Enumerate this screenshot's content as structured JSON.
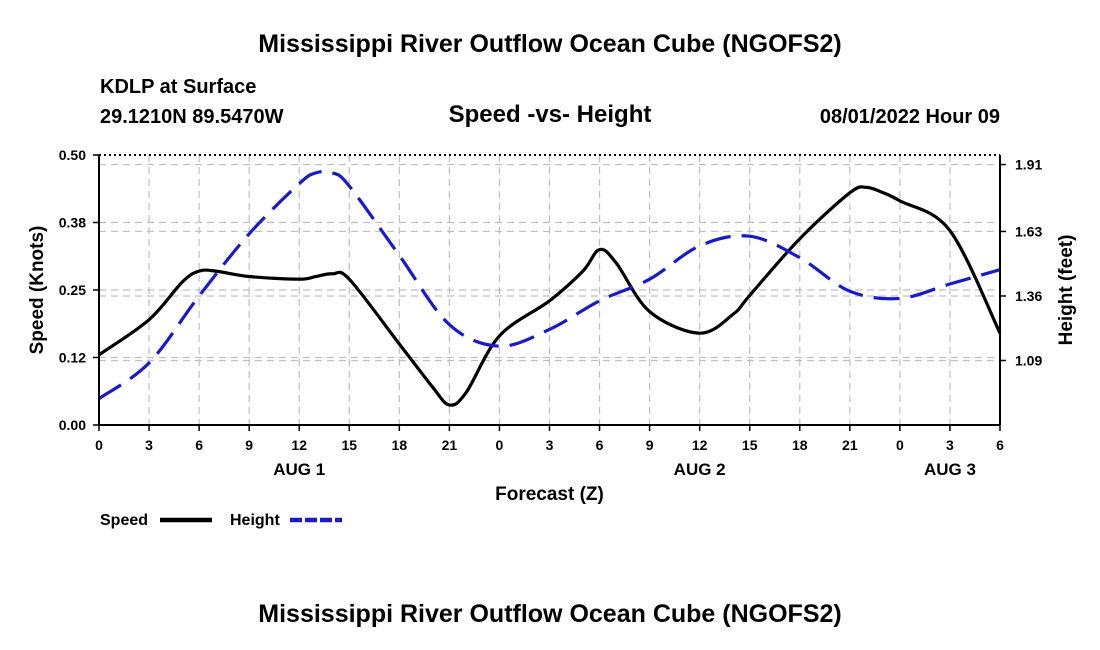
{
  "header": {
    "title": "Mississippi River Outflow Ocean Cube (NGOFS2)",
    "station": "KDLP at Surface",
    "location": "29.1210N  89.5470W",
    "subtitle": "Speed -vs- Height",
    "datetime": "08/01/2022 Hour 09"
  },
  "footer": {
    "title": "Mississippi River Outflow Ocean Cube (NGOFS2)"
  },
  "chart_data": {
    "type": "line",
    "title": "Speed -vs- Height",
    "xlabel": "Forecast (Z)",
    "ylabel": "Speed (Knots)",
    "y2label": "Height (feet)",
    "grid": true,
    "x_range": [
      0,
      54
    ],
    "x_ticks": [
      0,
      3,
      6,
      9,
      12,
      15,
      18,
      21,
      24,
      27,
      30,
      33,
      36,
      39,
      42,
      45,
      48,
      51,
      54
    ],
    "x_tick_labels": [
      "0",
      "3",
      "6",
      "9",
      "12",
      "15",
      "18",
      "21",
      "0",
      "3",
      "6",
      "9",
      "12",
      "15",
      "18",
      "21",
      "0",
      "3",
      "6"
    ],
    "day_labels": [
      {
        "x": 12,
        "label": "AUG 1"
      },
      {
        "x": 36,
        "label": "AUG 2"
      },
      {
        "x": 51,
        "label": "AUG 3"
      }
    ],
    "ylim": [
      0,
      0.5
    ],
    "y_ticks": [
      0,
      0.125,
      0.25,
      0.375,
      0.5
    ],
    "y_tick_labels": [
      "0.00",
      "0.12",
      "0.25",
      "0.38",
      "0.50"
    ],
    "y2lim": [
      0.82,
      1.95
    ],
    "y2_ticks": [
      1.09,
      1.36,
      1.63,
      1.91
    ],
    "y2_tick_labels": [
      "1.09",
      "1.36",
      "1.63",
      "1.91"
    ],
    "series": [
      {
        "name": "Speed",
        "axis": "left",
        "color": "#000000",
        "style": "solid",
        "x": [
          0,
          3,
          5,
          6,
          7,
          9,
          12,
          13,
          14,
          15,
          18,
          20,
          21,
          22,
          24,
          27,
          29,
          30,
          31,
          33,
          36,
          38,
          39,
          42,
          45,
          46,
          47,
          48,
          51,
          54
        ],
        "y": [
          0.13,
          0.195,
          0.265,
          0.285,
          0.285,
          0.275,
          0.27,
          0.275,
          0.28,
          0.27,
          0.15,
          0.07,
          0.037,
          0.06,
          0.165,
          0.23,
          0.285,
          0.325,
          0.3,
          0.21,
          0.17,
          0.205,
          0.24,
          0.345,
          0.43,
          0.44,
          0.43,
          0.415,
          0.36,
          0.17
        ]
      },
      {
        "name": "Height",
        "axis": "right",
        "color": "#1a1acc",
        "style": "dashed",
        "x": [
          0,
          3,
          6,
          9,
          12,
          13,
          14,
          15,
          18,
          21,
          24,
          27,
          30,
          33,
          36,
          39,
          42,
          45,
          48,
          51,
          54
        ],
        "y": [
          0.93,
          1.08,
          1.36,
          1.62,
          1.83,
          1.875,
          1.875,
          1.82,
          1.53,
          1.24,
          1.15,
          1.22,
          1.34,
          1.43,
          1.57,
          1.61,
          1.52,
          1.38,
          1.35,
          1.41,
          1.47
        ]
      }
    ],
    "legend": [
      {
        "label": "Speed",
        "color": "#000000",
        "style": "solid"
      },
      {
        "label": "Height",
        "color": "#1a1acc",
        "style": "dashed"
      }
    ]
  }
}
